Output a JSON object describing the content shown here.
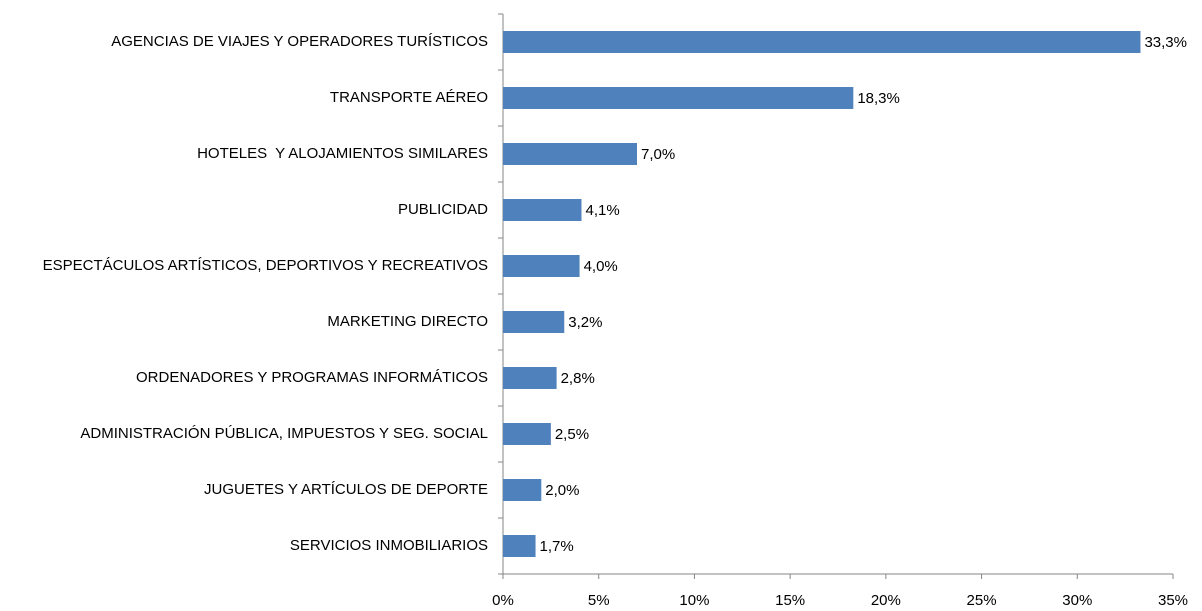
{
  "chart_data": {
    "type": "bar",
    "orientation": "horizontal",
    "categories": [
      "AGENCIAS DE VIAJES Y OPERADORES TURÍSTICOS",
      "TRANSPORTE AÉREO",
      "HOTELES  Y ALOJAMIENTOS SIMILARES",
      "PUBLICIDAD",
      "ESPECTÁCULOS ARTÍSTICOS, DEPORTIVOS Y RECREATIVOS",
      "MARKETING DIRECTO",
      "ORDENADORES Y PROGRAMAS INFORMÁTICOS",
      "ADMINISTRACIÓN PÚBLICA, IMPUESTOS Y SEG. SOCIAL",
      "JUGUETES Y ARTÍCULOS DE DEPORTE",
      "SERVICIOS INMOBILIARIOS"
    ],
    "values": [
      33.3,
      18.3,
      7.0,
      4.1,
      4.0,
      3.2,
      2.8,
      2.5,
      2.0,
      1.7
    ],
    "value_labels": [
      "33,3%",
      "18,3%",
      "7,0%",
      "4,1%",
      "4,0%",
      "3,2%",
      "2,8%",
      "2,5%",
      "2,0%",
      "1,7%"
    ],
    "color": "#4f81bd",
    "xlim": [
      0,
      35
    ],
    "xticks": [
      {
        "value": 0,
        "label": "0%"
      },
      {
        "value": 5,
        "label": "5%"
      },
      {
        "value": 10,
        "label": "10%"
      },
      {
        "value": 15,
        "label": "15%"
      },
      {
        "value": 20,
        "label": "20%"
      },
      {
        "value": 25,
        "label": "25%"
      },
      {
        "value": 30,
        "label": "30%"
      },
      {
        "value": 35,
        "label": "35%"
      }
    ],
    "grid": false
  }
}
